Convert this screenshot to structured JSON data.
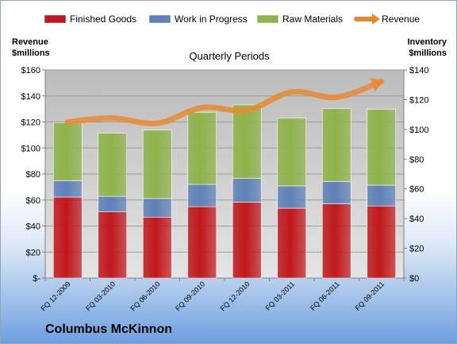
{
  "company": "Columbus McKinnon",
  "chart_data": {
    "type": "bar",
    "stacked": true,
    "title": "Quarterly Periods",
    "ylabel_left": [
      "Revenue",
      "$millions"
    ],
    "ylabel_right": [
      "Inventory",
      "$millions"
    ],
    "categories": [
      "FQ 12-2009",
      "FQ 03-2010",
      "FQ 06-2010",
      "FQ 09-2010",
      "FQ 12-2010",
      "FQ 03-2011",
      "FQ 06-2011",
      "FQ 09-2011"
    ],
    "left_axis": {
      "min": 0,
      "max": 160,
      "step": 20,
      "ticks": [
        "$-",
        "$20",
        "$40",
        "$60",
        "$80",
        "$100",
        "$120",
        "$140",
        "$160"
      ]
    },
    "right_axis": {
      "min": 0,
      "max": 140,
      "step": 20,
      "ticks": [
        "$0",
        "$20",
        "$40",
        "$60",
        "$80",
        "$100",
        "$120",
        "$140"
      ]
    },
    "legend_position": "top",
    "grid": true,
    "series": [
      {
        "name": "Finished Goods",
        "axis": "right",
        "kind": "bar",
        "color": "#c0181c",
        "values": [
          54.5,
          44.5,
          41.0,
          48.0,
          51.0,
          47.0,
          50.0,
          48.5
        ]
      },
      {
        "name": "Work in Progress",
        "axis": "right",
        "kind": "bar",
        "color": "#5f81b8",
        "values": [
          11.0,
          10.5,
          12.5,
          15.0,
          16.0,
          15.0,
          15.0,
          14.0
        ]
      },
      {
        "name": "Raw Materials",
        "axis": "right",
        "kind": "bar",
        "color": "#8eb34a",
        "values": [
          39.0,
          42.5,
          46.0,
          48.5,
          49.5,
          45.5,
          49.0,
          51.0
        ]
      },
      {
        "name": "Revenue",
        "axis": "left",
        "kind": "line",
        "color": "#e9892f",
        "values": [
          120,
          123,
          119,
          131,
          129,
          143,
          139,
          151
        ]
      }
    ]
  }
}
